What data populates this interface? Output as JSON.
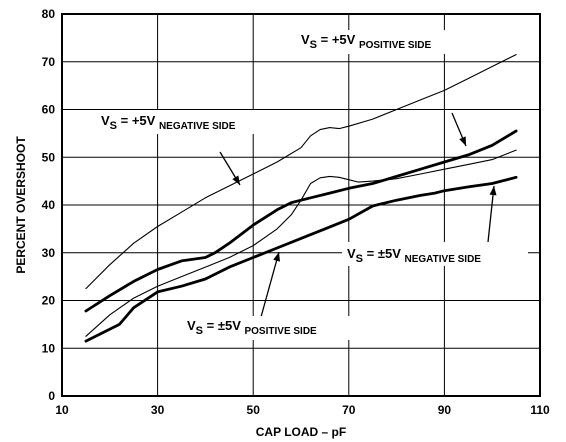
{
  "chart_data": {
    "type": "line",
    "xlabel": "CAP LOAD – pF",
    "ylabel": "PERCENT OVERSHOOT",
    "xlim": [
      10,
      110
    ],
    "ylim": [
      0,
      80
    ],
    "xticks": [
      10,
      30,
      50,
      70,
      90,
      110
    ],
    "yticks": [
      0,
      10,
      20,
      30,
      40,
      50,
      60,
      70,
      80
    ],
    "grid": true,
    "series": [
      {
        "id": "plus5_positive",
        "weight": "thin",
        "points": [
          [
            15,
            22.5
          ],
          [
            20,
            27.5
          ],
          [
            25,
            32
          ],
          [
            30,
            35.5
          ],
          [
            35,
            38.5
          ],
          [
            40,
            41.5
          ],
          [
            45,
            44
          ],
          [
            50,
            46.5
          ],
          [
            55,
            49
          ],
          [
            60,
            52
          ],
          [
            62,
            54.5
          ],
          [
            64,
            55.8
          ],
          [
            66,
            56.2
          ],
          [
            68,
            56
          ],
          [
            70,
            56.5
          ],
          [
            75,
            58
          ],
          [
            80,
            60
          ],
          [
            85,
            62
          ],
          [
            90,
            64
          ],
          [
            95,
            66.5
          ],
          [
            100,
            69
          ],
          [
            105,
            71.5
          ]
        ]
      },
      {
        "id": "plus5_negative",
        "weight": "thick",
        "points": [
          [
            15,
            17.8
          ],
          [
            20,
            21
          ],
          [
            25,
            24
          ],
          [
            30,
            26.5
          ],
          [
            35,
            28.3
          ],
          [
            40,
            29
          ],
          [
            42,
            30
          ],
          [
            45,
            32
          ],
          [
            50,
            35.8
          ],
          [
            55,
            39
          ],
          [
            58,
            40.5
          ],
          [
            62,
            41.5
          ],
          [
            66,
            42.5
          ],
          [
            70,
            43.5
          ],
          [
            75,
            44.5
          ],
          [
            80,
            46
          ],
          [
            85,
            47.5
          ],
          [
            90,
            49
          ],
          [
            95,
            50.5
          ],
          [
            100,
            52.5
          ],
          [
            105,
            55.5
          ]
        ]
      },
      {
        "id": "pm5_negative",
        "weight": "thin",
        "points": [
          [
            15,
            12.5
          ],
          [
            20,
            17
          ],
          [
            25,
            20.5
          ],
          [
            30,
            23
          ],
          [
            35,
            25
          ],
          [
            40,
            27
          ],
          [
            45,
            29
          ],
          [
            50,
            31.5
          ],
          [
            55,
            35
          ],
          [
            58,
            38
          ],
          [
            60,
            41
          ],
          [
            62,
            44.5
          ],
          [
            64,
            45.7
          ],
          [
            66,
            46
          ],
          [
            68,
            45.8
          ],
          [
            70,
            45.3
          ],
          [
            72,
            44.8
          ],
          [
            75,
            45
          ],
          [
            80,
            45.5
          ],
          [
            85,
            46.5
          ],
          [
            90,
            47.5
          ],
          [
            95,
            48.5
          ],
          [
            100,
            49.5
          ],
          [
            105,
            51.5
          ]
        ]
      },
      {
        "id": "pm5_positive",
        "weight": "thick",
        "points": [
          [
            15,
            11.5
          ],
          [
            22,
            15
          ],
          [
            25,
            18.5
          ],
          [
            30,
            21.8
          ],
          [
            35,
            23
          ],
          [
            40,
            24.5
          ],
          [
            45,
            27
          ],
          [
            50,
            29
          ],
          [
            55,
            31
          ],
          [
            60,
            33
          ],
          [
            65,
            35
          ],
          [
            70,
            37
          ],
          [
            75,
            39.8
          ],
          [
            80,
            41
          ],
          [
            85,
            42
          ],
          [
            88,
            42.5
          ],
          [
            90,
            43
          ],
          [
            95,
            43.8
          ],
          [
            100,
            44.5
          ],
          [
            105,
            45.8
          ]
        ]
      }
    ],
    "annotations": [
      {
        "id": "plus5_positive",
        "main": "V",
        "sub": "S",
        "value": " = +5V ",
        "side": "POSITIVE SIDE"
      },
      {
        "id": "plus5_negative",
        "main": "V",
        "sub": "S",
        "value": " = +5V ",
        "side": "NEGATIVE SIDE"
      },
      {
        "id": "pm5_negative",
        "main": "V",
        "sub": "S",
        "value": " = ±5V ",
        "side": "NEGATIVE SIDE"
      },
      {
        "id": "pm5_positive",
        "main": "V",
        "sub": "S",
        "value": " = ±5V ",
        "side": "POSITIVE SIDE"
      }
    ]
  }
}
